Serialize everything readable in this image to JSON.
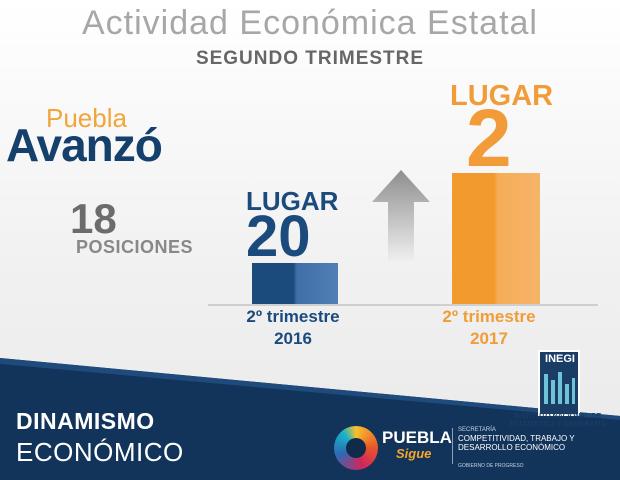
{
  "header": {
    "title": "Actividad Económica Estatal",
    "subtitle": "SEGUNDO TRIMESTRE"
  },
  "summary": {
    "state": "Puebla",
    "verb": "Avanzó",
    "positions_number": "18",
    "positions_label": "POSICIONES"
  },
  "ranking": {
    "before": {
      "lugar_label": "LUGAR",
      "lugar_value": "20",
      "period_line1": "2º trimestre",
      "period_line2": "2016"
    },
    "after": {
      "lugar_label": "LUGAR",
      "lugar_value": "2",
      "period_line1": "2º trimestre",
      "period_line2": "2017"
    }
  },
  "footer": {
    "title": "DINAMISMO",
    "subtitle": "ECONÓMICO"
  },
  "inegi": {
    "logo_text": "INEGI",
    "name": "INSTITUTO NACIONAL DE ESTADÍSTICA Y GEOGRAFÍA"
  },
  "puebla_logo": {
    "name": "PUEBLA",
    "tagline": "Sigue"
  },
  "secretaria": {
    "small": "SECRETARÍA",
    "main": "COMPETITIVIDAD, TRABAJO Y DESARROLLO ECONÓMICO",
    "gov": "GOBIERNO DE PROGRESO"
  },
  "colors": {
    "blue": "#1b4a7d",
    "orange": "#f19c38",
    "navy_footer": "#12335a"
  },
  "icons": {
    "up_arrow": "up-arrow-icon"
  }
}
